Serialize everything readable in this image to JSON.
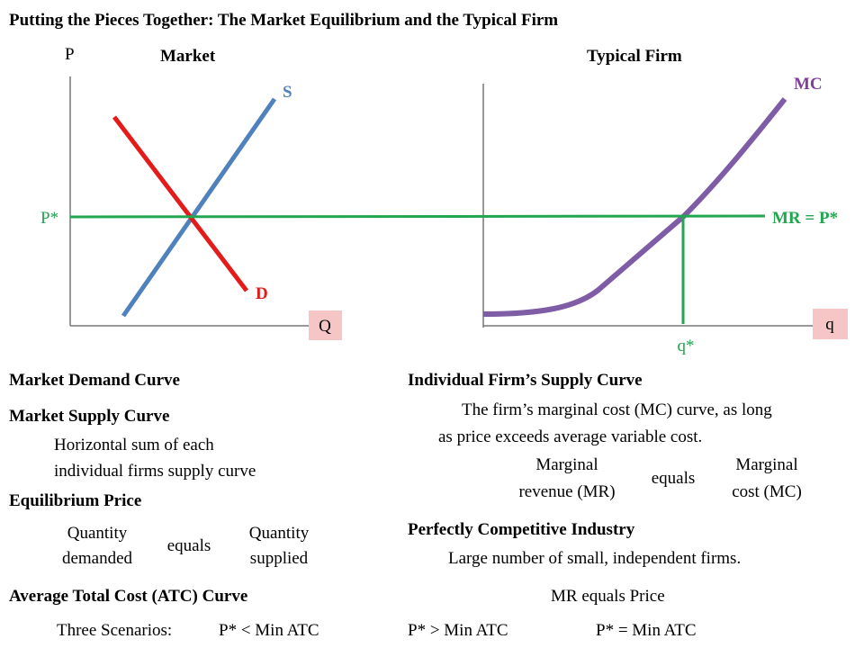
{
  "header": {
    "title": "Putting the Pieces Together: The Market Equilibrium and the Typical Firm"
  },
  "market_graph": {
    "title": "Market",
    "y_axis": "P",
    "x_axis": "Q",
    "supply": "S",
    "demand": "D",
    "price": "P*"
  },
  "firm_graph": {
    "title": "Typical Firm",
    "x_axis": "q",
    "mc": "MC",
    "mr": "MR = P*",
    "quantity": "q*"
  },
  "left_column": {
    "demand_heading": "Market Demand Curve",
    "supply_heading": "Market Supply Curve",
    "supply_text": [
      "Horizontal sum of each",
      "individual firms supply curve"
    ],
    "equilibrium_heading": "Equilibrium Price",
    "equilibrium_left": [
      "Quantity",
      "demanded"
    ],
    "equilibrium_mid": "equals",
    "equilibrium_right": [
      "Quantity",
      "supplied"
    ]
  },
  "right_column": {
    "firm_supply_heading": "Individual Firm’s Supply Curve",
    "firm_supply_text": [
      "The firm’s marginal cost (MC) curve, as long",
      "as price exceeds average variable cost."
    ],
    "mr_left": [
      "Marginal",
      "revenue (MR)"
    ],
    "mr_mid": "equals",
    "mr_right": [
      "Marginal",
      "cost (MC)"
    ],
    "industry_heading": "Perfectly Competitive Industry",
    "industry_text": "Large number of small, independent firms."
  },
  "footer": {
    "atc_heading": "Average Total Cost (ATC) Curve",
    "mr_note": "MR equals Price",
    "scenarios_label": "Three Scenarios:",
    "scenarios": [
      "P* < Min ATC",
      "P* > Min ATC",
      "P* = Min ATC"
    ]
  }
}
